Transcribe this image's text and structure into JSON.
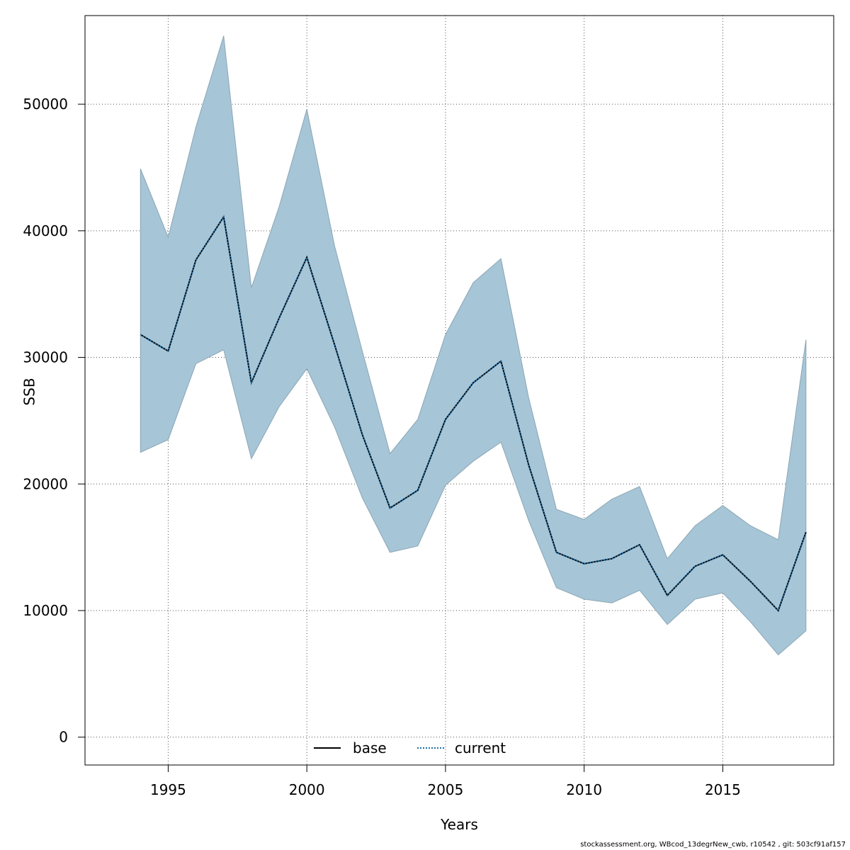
{
  "chart_data": {
    "type": "area",
    "xlabel": "Years",
    "ylabel": "SSB",
    "xlim": [
      1992,
      2019
    ],
    "ylim": [
      -2200,
      57000
    ],
    "x_ticks": [
      1995,
      2000,
      2005,
      2010,
      2015
    ],
    "y_ticks": [
      0,
      10000,
      20000,
      30000,
      40000,
      50000
    ],
    "grid": true,
    "legend_position": "bottom-center",
    "x": [
      1994,
      1995,
      1996,
      1997,
      1998,
      1999,
      2000,
      2001,
      2002,
      2003,
      2004,
      2005,
      2006,
      2007,
      2008,
      2009,
      2010,
      2011,
      2012,
      2013,
      2014,
      2015,
      2016,
      2017,
      2018
    ],
    "band": {
      "upper": [
        44900,
        39500,
        48200,
        55400,
        35500,
        41900,
        49600,
        38800,
        30500,
        22400,
        25100,
        31800,
        35900,
        37800,
        26800,
        18000,
        17200,
        18800,
        19800,
        14100,
        16700,
        18300,
        16700,
        15600,
        31400
      ],
      "lower": [
        22500,
        23500,
        29500,
        30600,
        22000,
        26100,
        29100,
        24500,
        18900,
        14600,
        15100,
        19900,
        21800,
        23300,
        17100,
        11800,
        10900,
        10600,
        11600,
        8900,
        10900,
        11400,
        9100,
        6500,
        8400
      ],
      "color": "#a6c5d6",
      "edge_color": "#8ba6b4"
    },
    "series": [
      {
        "name": "base",
        "style": "solid",
        "color": "#000000",
        "values": [
          31800,
          30500,
          37700,
          41100,
          28000,
          33100,
          37900,
          31000,
          23900,
          18100,
          19500,
          25100,
          28000,
          29700,
          21500,
          14600,
          13700,
          14100,
          15200,
          11200,
          13500,
          14400,
          12300,
          10000,
          16200
        ]
      },
      {
        "name": "current",
        "style": "dotted",
        "color": "#1f6fa8",
        "values": [
          31800,
          30500,
          37700,
          41100,
          28000,
          33100,
          37900,
          31000,
          23900,
          18100,
          19500,
          25100,
          28000,
          29700,
          21500,
          14600,
          13700,
          14100,
          15200,
          11200,
          13500,
          14400,
          12300,
          10000,
          16200
        ]
      }
    ]
  },
  "footer": "stockassessment.org, WBcod_13degrNew_cwb, r10542 , git: 503cf91af157"
}
